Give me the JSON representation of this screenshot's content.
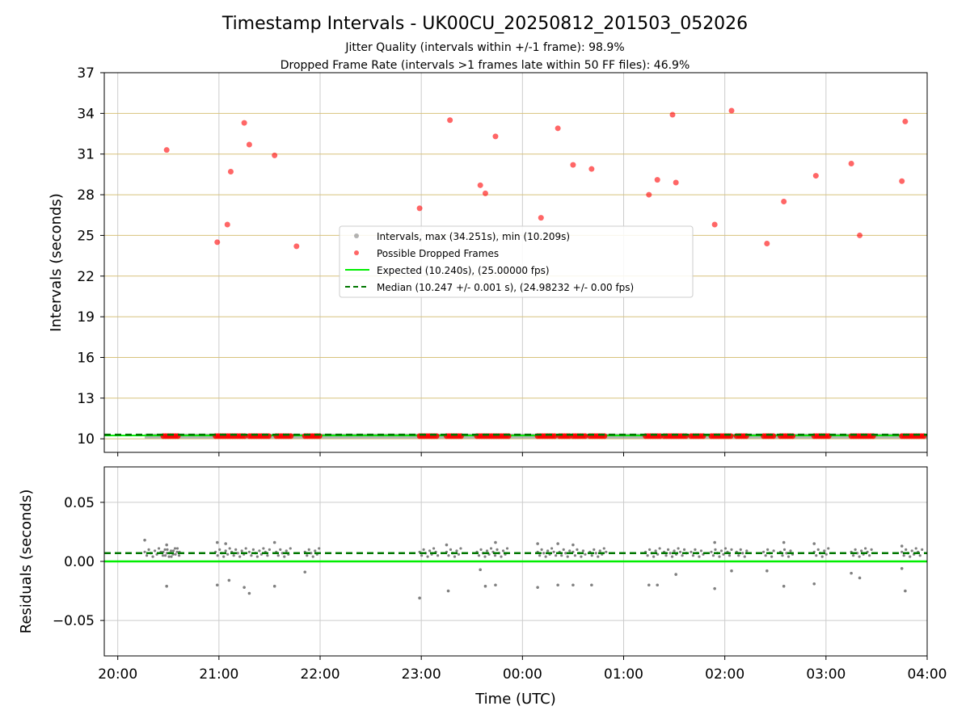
{
  "figure": {
    "title": "Timestamp Intervals - UK00CU_20250812_201503_052026",
    "subtitle_1": "Jitter Quality (intervals within +/-1 frame): 98.9%",
    "subtitle_2": "Dropped Frame Rate (intervals >1 frames late within 50 FF files): 46.9%"
  },
  "colors": {
    "interval": "#808080",
    "dropped": "#ff0000",
    "expected": "#00ee00",
    "median": "#007700",
    "hgrid_top": "#d8c27c",
    "grid": "#cccccc"
  },
  "chart_data": [
    {
      "type": "scatter",
      "xlabel": "",
      "ylabel": "Intervals (seconds)",
      "ylim": [
        9.0,
        37.0
      ],
      "yticks": [
        "10",
        "13",
        "16",
        "19",
        "22",
        "25",
        "28",
        "31",
        "34",
        "37"
      ],
      "xlim": [
        "19:52",
        "04:00"
      ],
      "grid": "vertical grey, horizontal tan",
      "legend_placement": "center",
      "legend": [
        {
          "label": "Intervals, max (34.251s), min (10.209s)",
          "kind": "gray-dot"
        },
        {
          "label": "Possible Dropped Frames",
          "kind": "red-dot"
        },
        {
          "label": "Expected (10.240s), (25.00000 fps)",
          "kind": "green-line"
        },
        {
          "label": "Median (10.247 +/- 0.001 s), (24.98232 +/- 0.00 fps)",
          "kind": "dashed-green-line"
        }
      ],
      "series": [
        {
          "name": "Possible Dropped Frames",
          "points": [
            [
              "20:29",
              31.3
            ],
            [
              "20:59",
              24.5
            ],
            [
              "21:05",
              25.8
            ],
            [
              "21:07",
              29.7
            ],
            [
              "21:15",
              33.3
            ],
            [
              "21:18",
              31.7
            ],
            [
              "21:33",
              30.9
            ],
            [
              "21:46",
              24.2
            ],
            [
              "22:59",
              27.0
            ],
            [
              "23:17",
              33.5
            ],
            [
              "23:35",
              28.7
            ],
            [
              "23:38",
              28.1
            ],
            [
              "23:44",
              32.3
            ],
            [
              "00:11",
              26.3
            ],
            [
              "00:21",
              32.9
            ],
            [
              "00:30",
              30.2
            ],
            [
              "00:41",
              29.9
            ],
            [
              "01:15",
              28.0
            ],
            [
              "01:20",
              29.1
            ],
            [
              "01:29",
              33.9
            ],
            [
              "01:31",
              28.9
            ],
            [
              "01:54",
              25.8
            ],
            [
              "02:04",
              34.2
            ],
            [
              "02:25",
              24.4
            ],
            [
              "02:35",
              27.5
            ],
            [
              "02:54",
              29.4
            ],
            [
              "03:15",
              30.3
            ],
            [
              "03:20",
              25.0
            ],
            [
              "03:45",
              29.0
            ],
            [
              "03:47",
              33.4
            ]
          ]
        },
        {
          "name": "Possible Dropped Frames",
          "note_clusters": [
            [
              "20:27",
              "20:37"
            ],
            [
              "20:58",
              "21:16"
            ],
            [
              "21:18",
              "21:30"
            ],
            [
              "21:34",
              "21:43"
            ],
            [
              "21:51",
              "22:00"
            ],
            [
              "22:59",
              "23:10"
            ],
            [
              "23:15",
              "23:24"
            ],
            [
              "23:33",
              "23:52"
            ],
            [
              "00:09",
              "00:20"
            ],
            [
              "00:22",
              "00:28"
            ],
            [
              "00:30",
              "00:38"
            ],
            [
              "00:40",
              "00:50"
            ],
            [
              "01:13",
              "01:22"
            ],
            [
              "01:24",
              "01:38"
            ],
            [
              "01:40",
              "01:48"
            ],
            [
              "01:52",
              "02:04"
            ],
            [
              "02:07",
              "02:14"
            ],
            [
              "02:23",
              "02:30"
            ],
            [
              "02:33",
              "02:41"
            ],
            [
              "02:53",
              "03:02"
            ],
            [
              "03:15",
              "03:28"
            ],
            [
              "03:45",
              "03:58"
            ]
          ],
          "value": 10.2
        },
        {
          "name": "Expected (10.240s), (25.00000 fps)",
          "value": 10.24
        },
        {
          "name": "Median (10.247 +/- 0.001 s), (24.98232 +/- 0.00 fps)",
          "value": 10.247
        }
      ]
    },
    {
      "type": "scatter",
      "xlabel": "Time (UTC)",
      "ylabel": "Residuals (seconds)",
      "ylim": [
        -0.08,
        0.08
      ],
      "yticks": [
        "0.05",
        "0.00",
        "−0.05"
      ],
      "xticks": [
        "20:00",
        "21:00",
        "22:00",
        "23:00",
        "00:00",
        "01:00",
        "02:00",
        "03:00",
        "04:00"
      ],
      "xlim": [
        "19:52",
        "04:00"
      ],
      "grid": "both grey",
      "series": [
        {
          "name": "Expected (10.240s), (25.00000 fps)",
          "value": 0.0
        },
        {
          "name": "Median (10.247 +/- 0.001 s), (24.98232 +/- 0.00 fps)",
          "value": 0.007
        },
        {
          "name": "Intervals, max (34.251s), min (10.209s)",
          "points": [
            [
              "20:16",
              0.018
            ],
            [
              "20:29",
              0.014
            ],
            [
              "20:29",
              -0.021
            ],
            [
              "20:59",
              0.016
            ],
            [
              "20:59",
              -0.02
            ],
            [
              "21:04",
              0.015
            ],
            [
              "21:06",
              -0.016
            ],
            [
              "21:15",
              -0.022
            ],
            [
              "21:18",
              -0.027
            ],
            [
              "21:33",
              0.016
            ],
            [
              "21:33",
              -0.021
            ],
            [
              "21:51",
              -0.009
            ],
            [
              "22:59",
              -0.031
            ],
            [
              "23:15",
              0.014
            ],
            [
              "23:16",
              -0.025
            ],
            [
              "23:35",
              -0.007
            ],
            [
              "23:38",
              -0.021
            ],
            [
              "23:44",
              0.016
            ],
            [
              "23:44",
              -0.02
            ],
            [
              "00:09",
              0.015
            ],
            [
              "00:09",
              -0.022
            ],
            [
              "00:21",
              0.015
            ],
            [
              "00:21",
              -0.02
            ],
            [
              "00:30",
              0.014
            ],
            [
              "00:30",
              -0.02
            ],
            [
              "00:41",
              -0.02
            ],
            [
              "01:15",
              -0.02
            ],
            [
              "01:20",
              -0.02
            ],
            [
              "01:31",
              -0.011
            ],
            [
              "01:54",
              0.016
            ],
            [
              "01:54",
              -0.023
            ],
            [
              "02:04",
              -0.008
            ],
            [
              "02:25",
              -0.008
            ],
            [
              "02:35",
              0.016
            ],
            [
              "02:35",
              -0.021
            ],
            [
              "02:53",
              0.015
            ],
            [
              "02:53",
              -0.019
            ],
            [
              "03:15",
              -0.01
            ],
            [
              "03:20",
              -0.014
            ],
            [
              "03:45",
              0.013
            ],
            [
              "03:45",
              -0.006
            ],
            [
              "03:47",
              -0.025
            ]
          ]
        }
      ]
    }
  ]
}
